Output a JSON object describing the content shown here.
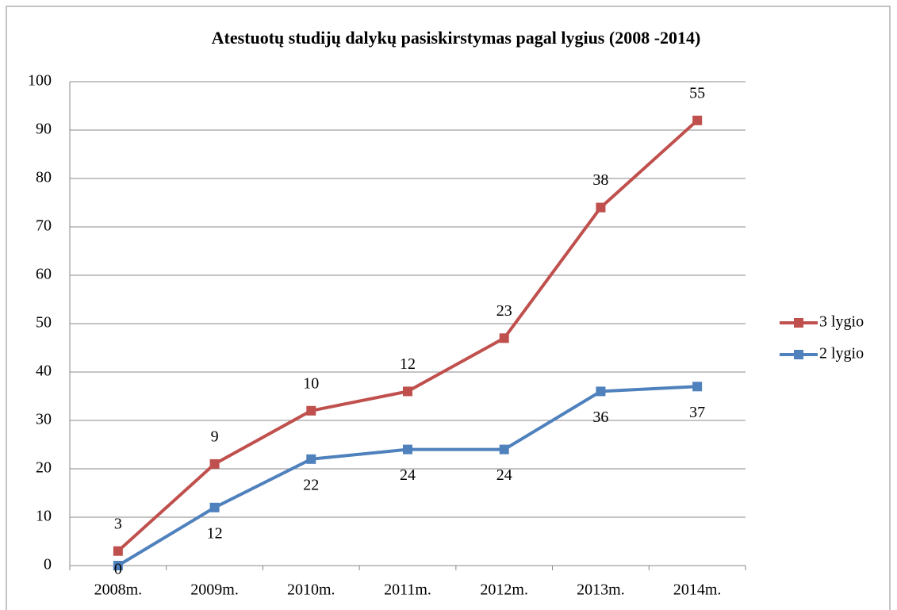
{
  "chart_data": {
    "type": "line",
    "stacked": true,
    "title": "Atestuotų studijų dalykų pasiskirstymas pagal lygius (2008 -2014)",
    "categories": [
      "2008m.",
      "2009m.",
      "2010m.",
      "2011m.",
      "2012m.",
      "2013m.",
      "2014m."
    ],
    "series": [
      {
        "name": "2 lygio",
        "color": "#4f81bd",
        "values": [
          0,
          12,
          22,
          24,
          24,
          36,
          37
        ]
      },
      {
        "name": "3 lygio",
        "color": "#c0504d",
        "values": [
          3,
          9,
          10,
          12,
          23,
          38,
          55
        ]
      }
    ],
    "ylim": [
      0,
      100
    ],
    "yticks": [
      0,
      10,
      20,
      30,
      40,
      50,
      60,
      70,
      80,
      90,
      100
    ],
    "grid": true,
    "legend": "right"
  }
}
